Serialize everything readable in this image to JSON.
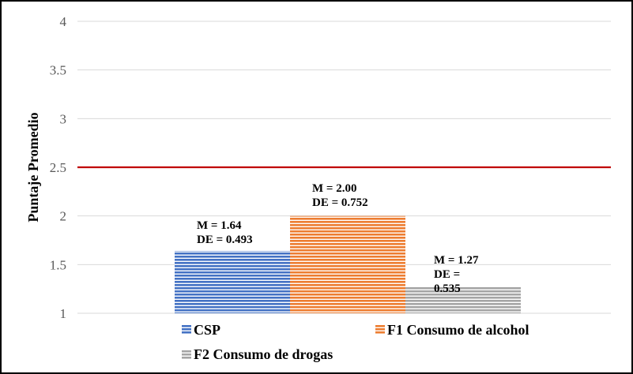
{
  "chart_data": {
    "type": "bar",
    "ylabel": "Puntaje Promedio",
    "ylim": [
      1,
      4
    ],
    "yticks": [
      "1",
      "1.5",
      "2",
      "2.5",
      "3",
      "3.5",
      "4"
    ],
    "grid": true,
    "legend_position": "bottom",
    "reference_line": {
      "value": 2.5,
      "color": "#C00000"
    },
    "series": [
      {
        "name": "CSP",
        "value": 1.64,
        "color": "#4472C4",
        "label_lines": [
          "M = 1.64",
          "DE = 0.493"
        ]
      },
      {
        "name": "F1 Consumo de alcohol",
        "value": 2.0,
        "color": "#ED7D31",
        "label_lines": [
          "M = 2.00",
          "DE = 0.752"
        ]
      },
      {
        "name": "F2 Consumo de drogas",
        "value": 1.27,
        "color": "#A5A5A5",
        "label_lines": [
          "M = 1.27",
          "DE =",
          "0.535"
        ]
      }
    ]
  }
}
